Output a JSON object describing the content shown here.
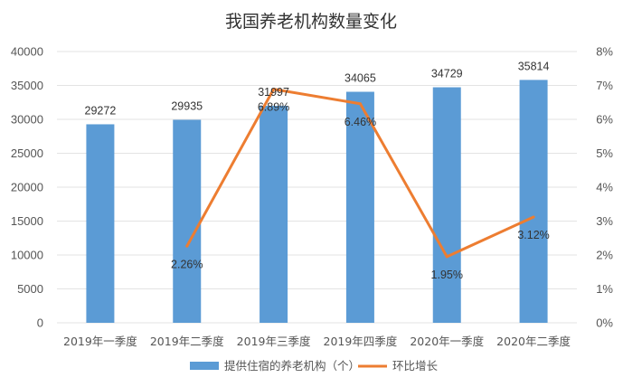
{
  "chart_data": {
    "type": "bar",
    "title": "我国养老机构数量变化",
    "categories": [
      "2019年一季度",
      "2019年二季度",
      "2019年三季度",
      "2019年四季度",
      "2020年一季度",
      "2020年二季度"
    ],
    "series": [
      {
        "name": "提供住宿的养老机构（个）",
        "type": "bar",
        "axis": "left",
        "color": "#5b9bd5",
        "values": [
          29272,
          29935,
          31997,
          34065,
          34729,
          35814
        ],
        "labels": [
          "29272",
          "29935",
          "31997",
          "34065",
          "34729",
          "35814"
        ]
      },
      {
        "name": "环比增长",
        "type": "line",
        "axis": "right",
        "color": "#ed7d31",
        "values": [
          null,
          2.26,
          6.89,
          6.46,
          1.95,
          3.12
        ],
        "labels": [
          null,
          "2.26%",
          "6.89%",
          "6.46%",
          "1.95%",
          "3.12%"
        ]
      }
    ],
    "y_left": {
      "min": 0,
      "max": 40000,
      "ticks": [
        0,
        5000,
        10000,
        15000,
        20000,
        25000,
        30000,
        35000,
        40000
      ],
      "tick_labels": [
        "0",
        "5000",
        "10000",
        "15000",
        "20000",
        "25000",
        "30000",
        "35000",
        "40000"
      ]
    },
    "y_right": {
      "min": 0,
      "max": 8,
      "ticks": [
        0,
        1,
        2,
        3,
        4,
        5,
        6,
        7,
        8
      ],
      "tick_labels": [
        "0%",
        "1%",
        "2%",
        "3%",
        "4%",
        "5%",
        "6%",
        "7%",
        "8%"
      ]
    },
    "grid": true,
    "legend": "bottom"
  }
}
